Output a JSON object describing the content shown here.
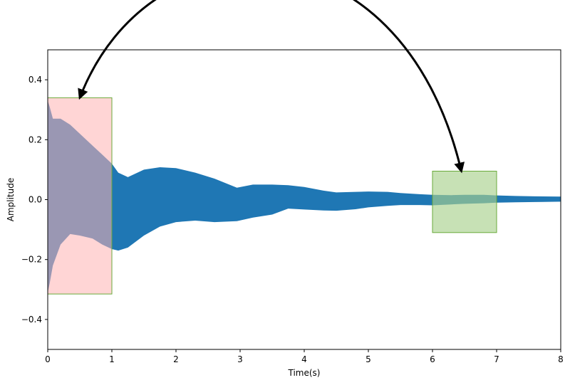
{
  "chart_data": {
    "type": "area",
    "title": "",
    "xlabel": "Time(s)",
    "ylabel": "Amplitude",
    "xlim": [
      0,
      8
    ],
    "ylim": [
      -0.5,
      0.5
    ],
    "xticks": [
      0,
      1,
      2,
      3,
      4,
      5,
      6,
      7,
      8
    ],
    "yticks": [
      -0.4,
      -0.2,
      0.0,
      0.2,
      0.4
    ],
    "xtick_labels": [
      "0",
      "1",
      "2",
      "3",
      "4",
      "5",
      "6",
      "7",
      "8"
    ],
    "ytick_labels": [
      "−0.4",
      "−0.2",
      "0.0",
      "0.2",
      "0.4"
    ],
    "grid": false,
    "colors": {
      "signal": "#1f77b4",
      "highlight_red": "#ffb3b3",
      "highlight_green": "#a9d18e",
      "highlight_border": "#6aaa3a",
      "arrow": "#000000"
    },
    "series": [
      {
        "x": [
          0.0,
          0.03,
          0.08,
          0.2,
          0.35,
          0.5,
          0.7,
          0.85,
          1.0,
          1.1,
          1.25,
          1.5,
          1.75,
          2.0,
          2.3,
          2.6,
          2.95,
          3.2,
          3.5,
          3.75,
          4.0,
          4.3,
          4.5,
          4.8,
          5.0,
          5.3,
          5.5,
          5.8,
          6.0,
          6.3,
          6.5,
          6.8,
          7.0,
          7.3,
          7.6,
          8.0
        ],
        "upper": [
          0.33,
          0.31,
          0.27,
          0.27,
          0.25,
          0.22,
          0.18,
          0.15,
          0.12,
          0.09,
          0.075,
          0.1,
          0.108,
          0.105,
          0.09,
          0.07,
          0.04,
          0.05,
          0.05,
          0.048,
          0.042,
          0.03,
          0.024,
          0.026,
          0.027,
          0.026,
          0.022,
          0.018,
          0.016,
          0.015,
          0.016,
          0.016,
          0.014,
          0.012,
          0.011,
          0.01
        ],
        "lower": [
          -0.31,
          -0.28,
          -0.22,
          -0.15,
          -0.115,
          -0.12,
          -0.13,
          -0.15,
          -0.165,
          -0.17,
          -0.16,
          -0.12,
          -0.09,
          -0.075,
          -0.07,
          -0.075,
          -0.072,
          -0.06,
          -0.05,
          -0.03,
          -0.033,
          -0.036,
          -0.037,
          -0.032,
          -0.026,
          -0.021,
          -0.018,
          -0.018,
          -0.019,
          -0.016,
          -0.014,
          -0.012,
          -0.01,
          -0.009,
          -0.008,
          -0.007
        ]
      }
    ],
    "highlights": [
      {
        "color": "red",
        "x0": 0.0,
        "x1": 1.0,
        "y0": -0.315,
        "y1": 0.34
      },
      {
        "color": "green",
        "x0": 6.0,
        "x1": 7.0,
        "y0": -0.11,
        "y1": 0.095
      }
    ],
    "arrows": [
      {
        "from": [
          6.45,
          0.095
        ],
        "to": [
          0.5,
          0.34
        ],
        "control1": [
          5.5,
          0.95
        ],
        "control2": [
          1.6,
          0.95
        ],
        "bidirectional": true
      }
    ]
  }
}
